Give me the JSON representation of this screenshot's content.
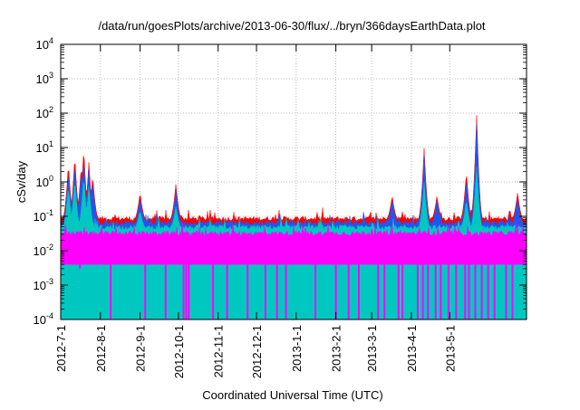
{
  "chart_data": {
    "type": "area",
    "title": "/data/run/goesPlots/archive/2013-06-30/flux/../bryn/366daysEarthData.plot",
    "ylabel": "cSv/day",
    "xlabel": "Coordinated Universal Time (UTC)",
    "yscale": "log",
    "ylim": [
      0.0001,
      10000
    ],
    "y_ticks": [
      {
        "base": "10",
        "exp": "-4",
        "value": 0.0001
      },
      {
        "base": "10",
        "exp": "-3",
        "value": 0.001
      },
      {
        "base": "10",
        "exp": "-2",
        "value": 0.01
      },
      {
        "base": "10",
        "exp": "-1",
        "value": 0.1
      },
      {
        "base": "10",
        "exp": "0",
        "value": 1
      },
      {
        "base": "10",
        "exp": "1",
        "value": 10
      },
      {
        "base": "10",
        "exp": "2",
        "value": 100
      },
      {
        "base": "10",
        "exp": "3",
        "value": 1000
      },
      {
        "base": "10",
        "exp": "4",
        "value": 10000
      }
    ],
    "xlim": [
      "2012-07-01",
      "2013-06-30"
    ],
    "x_ticks": [
      "2012-7-1",
      "2012-8-1",
      "2012-9-1",
      "2012-10-1",
      "2012-11-1",
      "2012-12-1",
      "2013-1-1",
      "2013-2-1",
      "2013-3-1",
      "2013-4-1",
      "2013-5-1"
    ],
    "grid": true,
    "series": [
      {
        "color": "#ff0000",
        "baseline": 0.08,
        "peaks": [
          {
            "x": "2012-07-07",
            "y": 3.5
          },
          {
            "x": "2012-07-12",
            "y": 6.0
          },
          {
            "x": "2012-07-17",
            "y": 3.0
          },
          {
            "x": "2012-07-19",
            "y": 10.0
          },
          {
            "x": "2012-07-23",
            "y": 4.0
          },
          {
            "x": "2012-07-26",
            "y": 1.5
          },
          {
            "x": "2012-09-01",
            "y": 0.5
          },
          {
            "x": "2012-09-29",
            "y": 0.9
          },
          {
            "x": "2013-03-17",
            "y": 0.4
          },
          {
            "x": "2013-04-11",
            "y": 10.0
          },
          {
            "x": "2013-04-21",
            "y": 0.4
          },
          {
            "x": "2013-05-14",
            "y": 2.0
          },
          {
            "x": "2013-05-22",
            "y": 100.0
          },
          {
            "x": "2013-06-23",
            "y": 0.5
          }
        ]
      },
      {
        "color": "#2255ee",
        "baseline": 0.06,
        "peaks": [
          {
            "x": "2012-07-07",
            "y": 2.0
          },
          {
            "x": "2012-07-12",
            "y": 3.5
          },
          {
            "x": "2012-07-17",
            "y": 2.0
          },
          {
            "x": "2012-07-19",
            "y": 5.0
          },
          {
            "x": "2012-07-23",
            "y": 2.5
          },
          {
            "x": "2012-07-26",
            "y": 1.0
          },
          {
            "x": "2012-09-01",
            "y": 0.35
          },
          {
            "x": "2012-09-29",
            "y": 0.6
          },
          {
            "x": "2013-03-17",
            "y": 0.3
          },
          {
            "x": "2013-04-11",
            "y": 6.0
          },
          {
            "x": "2013-04-21",
            "y": 0.3
          },
          {
            "x": "2013-05-14",
            "y": 1.2
          },
          {
            "x": "2013-05-22",
            "y": 60.0
          },
          {
            "x": "2013-06-23",
            "y": 0.35
          }
        ]
      },
      {
        "color": "#00c8c0",
        "baseline": 0.045,
        "peaks": [
          {
            "x": "2012-07-07",
            "y": 0.8
          },
          {
            "x": "2012-07-12",
            "y": 1.2
          },
          {
            "x": "2012-07-19",
            "y": 1.5
          },
          {
            "x": "2012-07-23",
            "y": 0.8
          },
          {
            "x": "2012-09-01",
            "y": 0.15
          },
          {
            "x": "2012-09-29",
            "y": 0.2
          },
          {
            "x": "2013-04-11",
            "y": 1.0
          },
          {
            "x": "2013-05-14",
            "y": 0.3
          },
          {
            "x": "2013-05-22",
            "y": 3.0
          }
        ]
      },
      {
        "color": "#ff00ff",
        "baseline": 0.03,
        "floor": 0.004,
        "dips": [
          {
            "x": "2012-07-16",
            "y": 0.003
          },
          {
            "x": "2012-08-09",
            "y": 0.0001
          },
          {
            "x": "2012-09-05",
            "y": 0.0001
          },
          {
            "x": "2012-09-21",
            "y": 0.0001
          },
          {
            "x": "2012-10-05",
            "y": 0.0001
          },
          {
            "x": "2012-10-07",
            "y": 0.0001
          },
          {
            "x": "2012-10-09",
            "y": 0.0001
          },
          {
            "x": "2012-10-28",
            "y": 0.0001
          },
          {
            "x": "2012-11-08",
            "y": 0.0001
          },
          {
            "x": "2012-11-24",
            "y": 0.0001
          },
          {
            "x": "2012-12-08",
            "y": 0.0001
          },
          {
            "x": "2012-12-17",
            "y": 0.0001
          },
          {
            "x": "2012-12-24",
            "y": 0.0001
          },
          {
            "x": "2013-01-16",
            "y": 0.0001
          },
          {
            "x": "2013-02-01",
            "y": 0.0001
          },
          {
            "x": "2013-02-11",
            "y": 0.0001
          },
          {
            "x": "2013-02-19",
            "y": 0.0001
          },
          {
            "x": "2013-03-06",
            "y": 0.0001
          },
          {
            "x": "2013-03-11",
            "y": 0.0001
          },
          {
            "x": "2013-03-22",
            "y": 0.0001
          },
          {
            "x": "2013-03-25",
            "y": 0.0001
          },
          {
            "x": "2013-04-06",
            "y": 0.0001
          },
          {
            "x": "2013-04-10",
            "y": 0.0001
          },
          {
            "x": "2013-04-14",
            "y": 0.0001
          },
          {
            "x": "2013-04-20",
            "y": 0.0001
          },
          {
            "x": "2013-04-24",
            "y": 0.0001
          },
          {
            "x": "2013-04-30",
            "y": 0.0001
          },
          {
            "x": "2013-05-06",
            "y": 0.0001
          },
          {
            "x": "2013-05-13",
            "y": 0.0001
          },
          {
            "x": "2013-05-16",
            "y": 0.0001
          },
          {
            "x": "2013-05-21",
            "y": 0.0001
          },
          {
            "x": "2013-05-26",
            "y": 0.0001
          },
          {
            "x": "2013-05-31",
            "y": 0.0001
          },
          {
            "x": "2013-06-05",
            "y": 0.0001
          },
          {
            "x": "2013-06-14",
            "y": 0.0001
          },
          {
            "x": "2013-06-19",
            "y": 0.0001
          }
        ]
      }
    ]
  }
}
